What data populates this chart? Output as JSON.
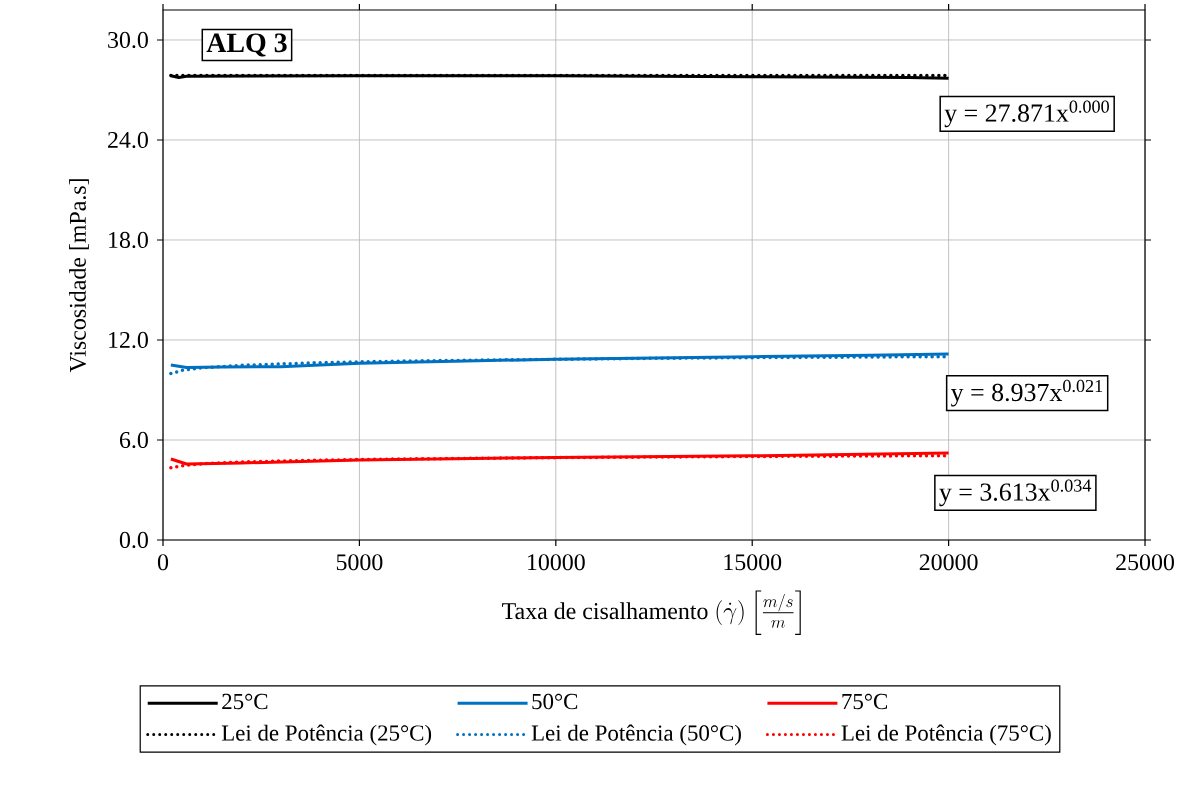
{
  "chart_data": {
    "type": "line",
    "xlabel": "\\text{Taxa de cisalhamento } (\\dot{\\gamma})\\left[\\frac{m/s}{m}\\right]",
    "ylabel": "Viscosidade [mPa.s]",
    "xlim": [
      0,
      25000
    ],
    "xticks": [
      0,
      5000,
      10000,
      15000,
      20000,
      25000
    ],
    "ylim": [
      0,
      31.8
    ],
    "yticks": [
      {
        "value": 0,
        "label": "0.0"
      },
      {
        "value": 6,
        "label": "6.0"
      },
      {
        "value": 12,
        "label": "12.0"
      },
      {
        "value": 18,
        "label": "18.0"
      },
      {
        "value": 24,
        "label": "24.0"
      },
      {
        "value": 30,
        "label": "30.0"
      }
    ],
    "grid": true,
    "legend": "bottom",
    "marker": "none",
    "annotations": [
      "ALQ 3",
      "y = 27.871x$^{0.000}$",
      "y = 8.937x$^{0.021}$",
      "y = 3.613x$^{0.034}$"
    ],
    "series": [
      {
        "name": "25°C",
        "color": "#000000",
        "line_style": "solid",
        "x": [
          200,
          400,
          600,
          5000,
          10000,
          15000,
          19000,
          20000
        ],
        "values": [
          27.85,
          27.75,
          27.82,
          27.85,
          27.85,
          27.8,
          27.75,
          27.7
        ]
      },
      {
        "name": "50°C",
        "color": "#0070c0",
        "line_style": "solid",
        "x": [
          200,
          600,
          1500,
          3000,
          5000,
          8000,
          10000,
          12000,
          15000,
          18000,
          20000
        ],
        "values": [
          10.5,
          10.35,
          10.38,
          10.4,
          10.6,
          10.75,
          10.85,
          10.9,
          11.0,
          11.08,
          11.16
        ]
      },
      {
        "name": "75°C",
        "color": "#ff0000",
        "line_style": "solid",
        "x": [
          200,
          600,
          2000,
          5000,
          10000,
          15000,
          20000
        ],
        "values": [
          4.86,
          4.56,
          4.62,
          4.8,
          4.95,
          5.05,
          5.22
        ]
      },
      {
        "name": "Lei de Potência (25°C)",
        "color": "#000000",
        "line_style": "dotted",
        "x": [
          200,
          20000
        ],
        "values": [
          27.87,
          27.87
        ]
      },
      {
        "name": "Lei de Potência (50°C)",
        "color": "#0070c0",
        "line_style": "dotted",
        "x": [
          200,
          500,
          1000,
          2000,
          4000,
          6000,
          8000,
          10000,
          12000,
          15000,
          18000,
          20000
        ],
        "values": [
          9.99,
          10.18,
          10.33,
          10.48,
          10.64,
          10.73,
          10.79,
          10.84,
          10.89,
          10.94,
          10.98,
          11.0
        ]
      },
      {
        "name": "Lei de Potência (75°C)",
        "color": "#ff0000",
        "line_style": "dotted",
        "x": [
          200,
          500,
          1000,
          2000,
          4000,
          6000,
          8000,
          10000,
          12000,
          15000,
          18000,
          20000
        ],
        "values": [
          4.33,
          4.46,
          4.57,
          4.68,
          4.79,
          4.86,
          4.9,
          4.94,
          4.97,
          5.01,
          5.04,
          5.06
        ]
      }
    ]
  }
}
